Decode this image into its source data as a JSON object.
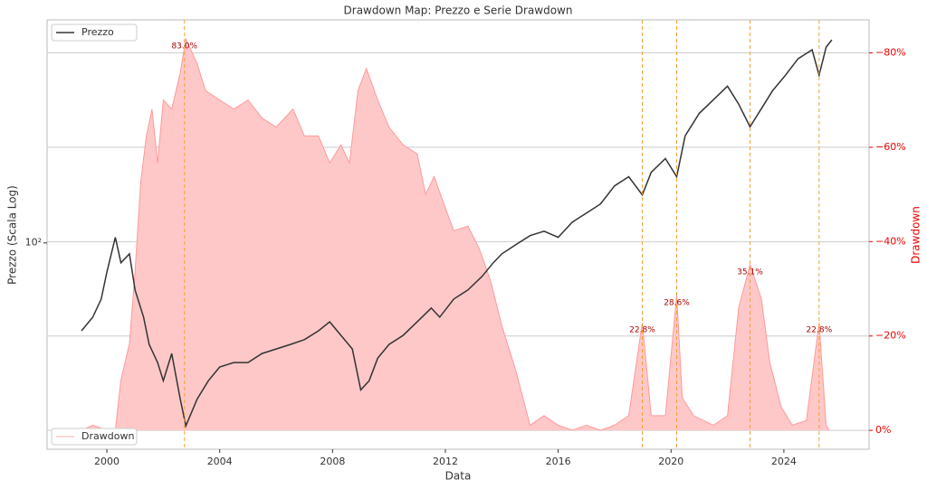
{
  "chart_data": {
    "type": "line",
    "title": "Drawdown Map: Prezzo e Serie Drawdown",
    "xlabel": "Data",
    "ylabel": "Prezzo (Scala Log)",
    "y2label": "Drawdown",
    "xlim": [
      1997.88,
      2027.02
    ],
    "xticks": [
      2000,
      2004,
      2008,
      2012,
      2016,
      2020,
      2024
    ],
    "ylim": [
      43,
      249
    ],
    "log_y": true,
    "yticks": [
      {
        "value": 100,
        "label": "10²"
      }
    ],
    "y2lim": [
      4,
      -87
    ],
    "y2ticks": [
      {
        "value": 0,
        "label": "0%"
      },
      {
        "value": -20,
        "label": "−20%"
      },
      {
        "value": -40,
        "label": "−40%"
      },
      {
        "value": -60,
        "label": "−60%"
      },
      {
        "value": -80,
        "label": "−80%"
      }
    ],
    "grid": true,
    "series": [
      {
        "name": "Prezzo",
        "color": "#333333",
        "axis": "y",
        "legend": "upper left",
        "x": [
          1999.1,
          1999.5,
          1999.8,
          2000.0,
          2000.3,
          2000.5,
          2000.8,
          2001.0,
          2001.3,
          2001.5,
          2001.8,
          2002.0,
          2002.3,
          2002.6,
          2002.8,
          2003.2,
          2003.6,
          2004.0,
          2004.5,
          2005.0,
          2005.5,
          2006.0,
          2006.5,
          2007.0,
          2007.5,
          2007.9,
          2008.3,
          2008.7,
          2009.0,
          2009.3,
          2009.6,
          2010.0,
          2010.5,
          2011.0,
          2011.5,
          2011.8,
          2012.3,
          2012.8,
          2013.3,
          2013.7,
          2014.0,
          2014.5,
          2015.0,
          2015.5,
          2016.0,
          2016.5,
          2017.0,
          2017.5,
          2018.0,
          2018.5,
          2018.98,
          2019.3,
          2019.8,
          2020.2,
          2020.5,
          2021.0,
          2021.5,
          2022.0,
          2022.4,
          2022.8,
          2023.2,
          2023.6,
          2024.0,
          2024.5,
          2025.0,
          2025.25,
          2025.5,
          2025.7
        ],
        "values": [
          69.8,
          73.8,
          79.5,
          88.8,
          102.3,
          92.2,
          95.6,
          82.5,
          73.8,
          66.0,
          61.3,
          56.9,
          63.6,
          52.8,
          47.3,
          52.8,
          56.9,
          60.2,
          61.3,
          61.3,
          63.6,
          64.8,
          66.0,
          67.3,
          69.8,
          72.4,
          68.5,
          64.8,
          54.8,
          56.9,
          62.4,
          66.0,
          68.5,
          72.4,
          76.6,
          73.8,
          79.5,
          82.5,
          87.2,
          92.2,
          95.6,
          99.3,
          103.0,
          104.9,
          102.3,
          108.9,
          113.0,
          117.3,
          126.3,
          131.1,
          121.7,
          133.5,
          141.2,
          131.1,
          154.9,
          169.9,
          179.6,
          189.9,
          176.4,
          160.8,
          173.1,
          186.4,
          197.0,
          212.3,
          220.3,
          198.6,
          222.8,
          229.5
        ]
      },
      {
        "name": "Drawdown",
        "color": "#ff9999",
        "fill": "#ffc8c8",
        "axis": "y2",
        "legend": "lower left",
        "x": [
          1999.1,
          1999.5,
          2000.0,
          2000.3,
          2000.5,
          2000.8,
          2001.0,
          2001.2,
          2001.4,
          2001.6,
          2001.8,
          2002.0,
          2002.3,
          2002.6,
          2002.8,
          2003.2,
          2003.5,
          2004.0,
          2004.5,
          2005.0,
          2005.5,
          2006.0,
          2006.6,
          2007.0,
          2007.5,
          2007.9,
          2008.3,
          2008.6,
          2008.9,
          2009.2,
          2009.6,
          2010.0,
          2010.5,
          2011.0,
          2011.3,
          2011.6,
          2012.0,
          2012.3,
          2012.8,
          2013.2,
          2013.6,
          2014.0,
          2014.5,
          2015.0,
          2015.5,
          2016.0,
          2016.5,
          2017.0,
          2017.5,
          2018.0,
          2018.5,
          2018.98,
          2019.3,
          2019.8,
          2020.2,
          2020.4,
          2020.8,
          2021.5,
          2022.0,
          2022.4,
          2022.8,
          2023.2,
          2023.5,
          2023.9,
          2024.3,
          2024.8,
          2025.25,
          2025.5,
          2025.6
        ],
        "values": [
          0,
          -1.1,
          0,
          0,
          -10.7,
          -18.4,
          -33.7,
          -52.8,
          -62.4,
          -68.1,
          -56.7,
          -70.0,
          -68.1,
          -75.8,
          -83.0,
          -77.7,
          -72.0,
          -70.0,
          -68.1,
          -70.0,
          -66.2,
          -64.3,
          -68.1,
          -62.4,
          -62.4,
          -56.7,
          -60.5,
          -56.7,
          -72.0,
          -76.7,
          -70.0,
          -64.3,
          -60.5,
          -58.6,
          -50.0,
          -53.8,
          -47.1,
          -42.3,
          -43.3,
          -38.5,
          -31.8,
          -22.2,
          -12.6,
          -1.1,
          -3.1,
          -1.1,
          0,
          -1.1,
          0,
          -1.1,
          -3.1,
          -22.8,
          -3.1,
          -3.1,
          -28.6,
          -6.9,
          -3.1,
          -1.1,
          -3.1,
          -26.0,
          -35.1,
          -27.9,
          -14.5,
          -5.0,
          -1.1,
          -2.1,
          -22.8,
          -1.1,
          0
        ]
      }
    ],
    "annotations": [
      {
        "x": 2002.75,
        "y": -83.0,
        "label": "83.0%"
      },
      {
        "x": 2018.98,
        "y": -22.8,
        "label": "22.8%"
      },
      {
        "x": 2020.2,
        "y": -28.6,
        "label": "28.6%"
      },
      {
        "x": 2022.8,
        "y": -35.1,
        "label": "35.1%"
      },
      {
        "x": 2025.25,
        "y": -22.8,
        "label": "22.8%"
      }
    ]
  }
}
